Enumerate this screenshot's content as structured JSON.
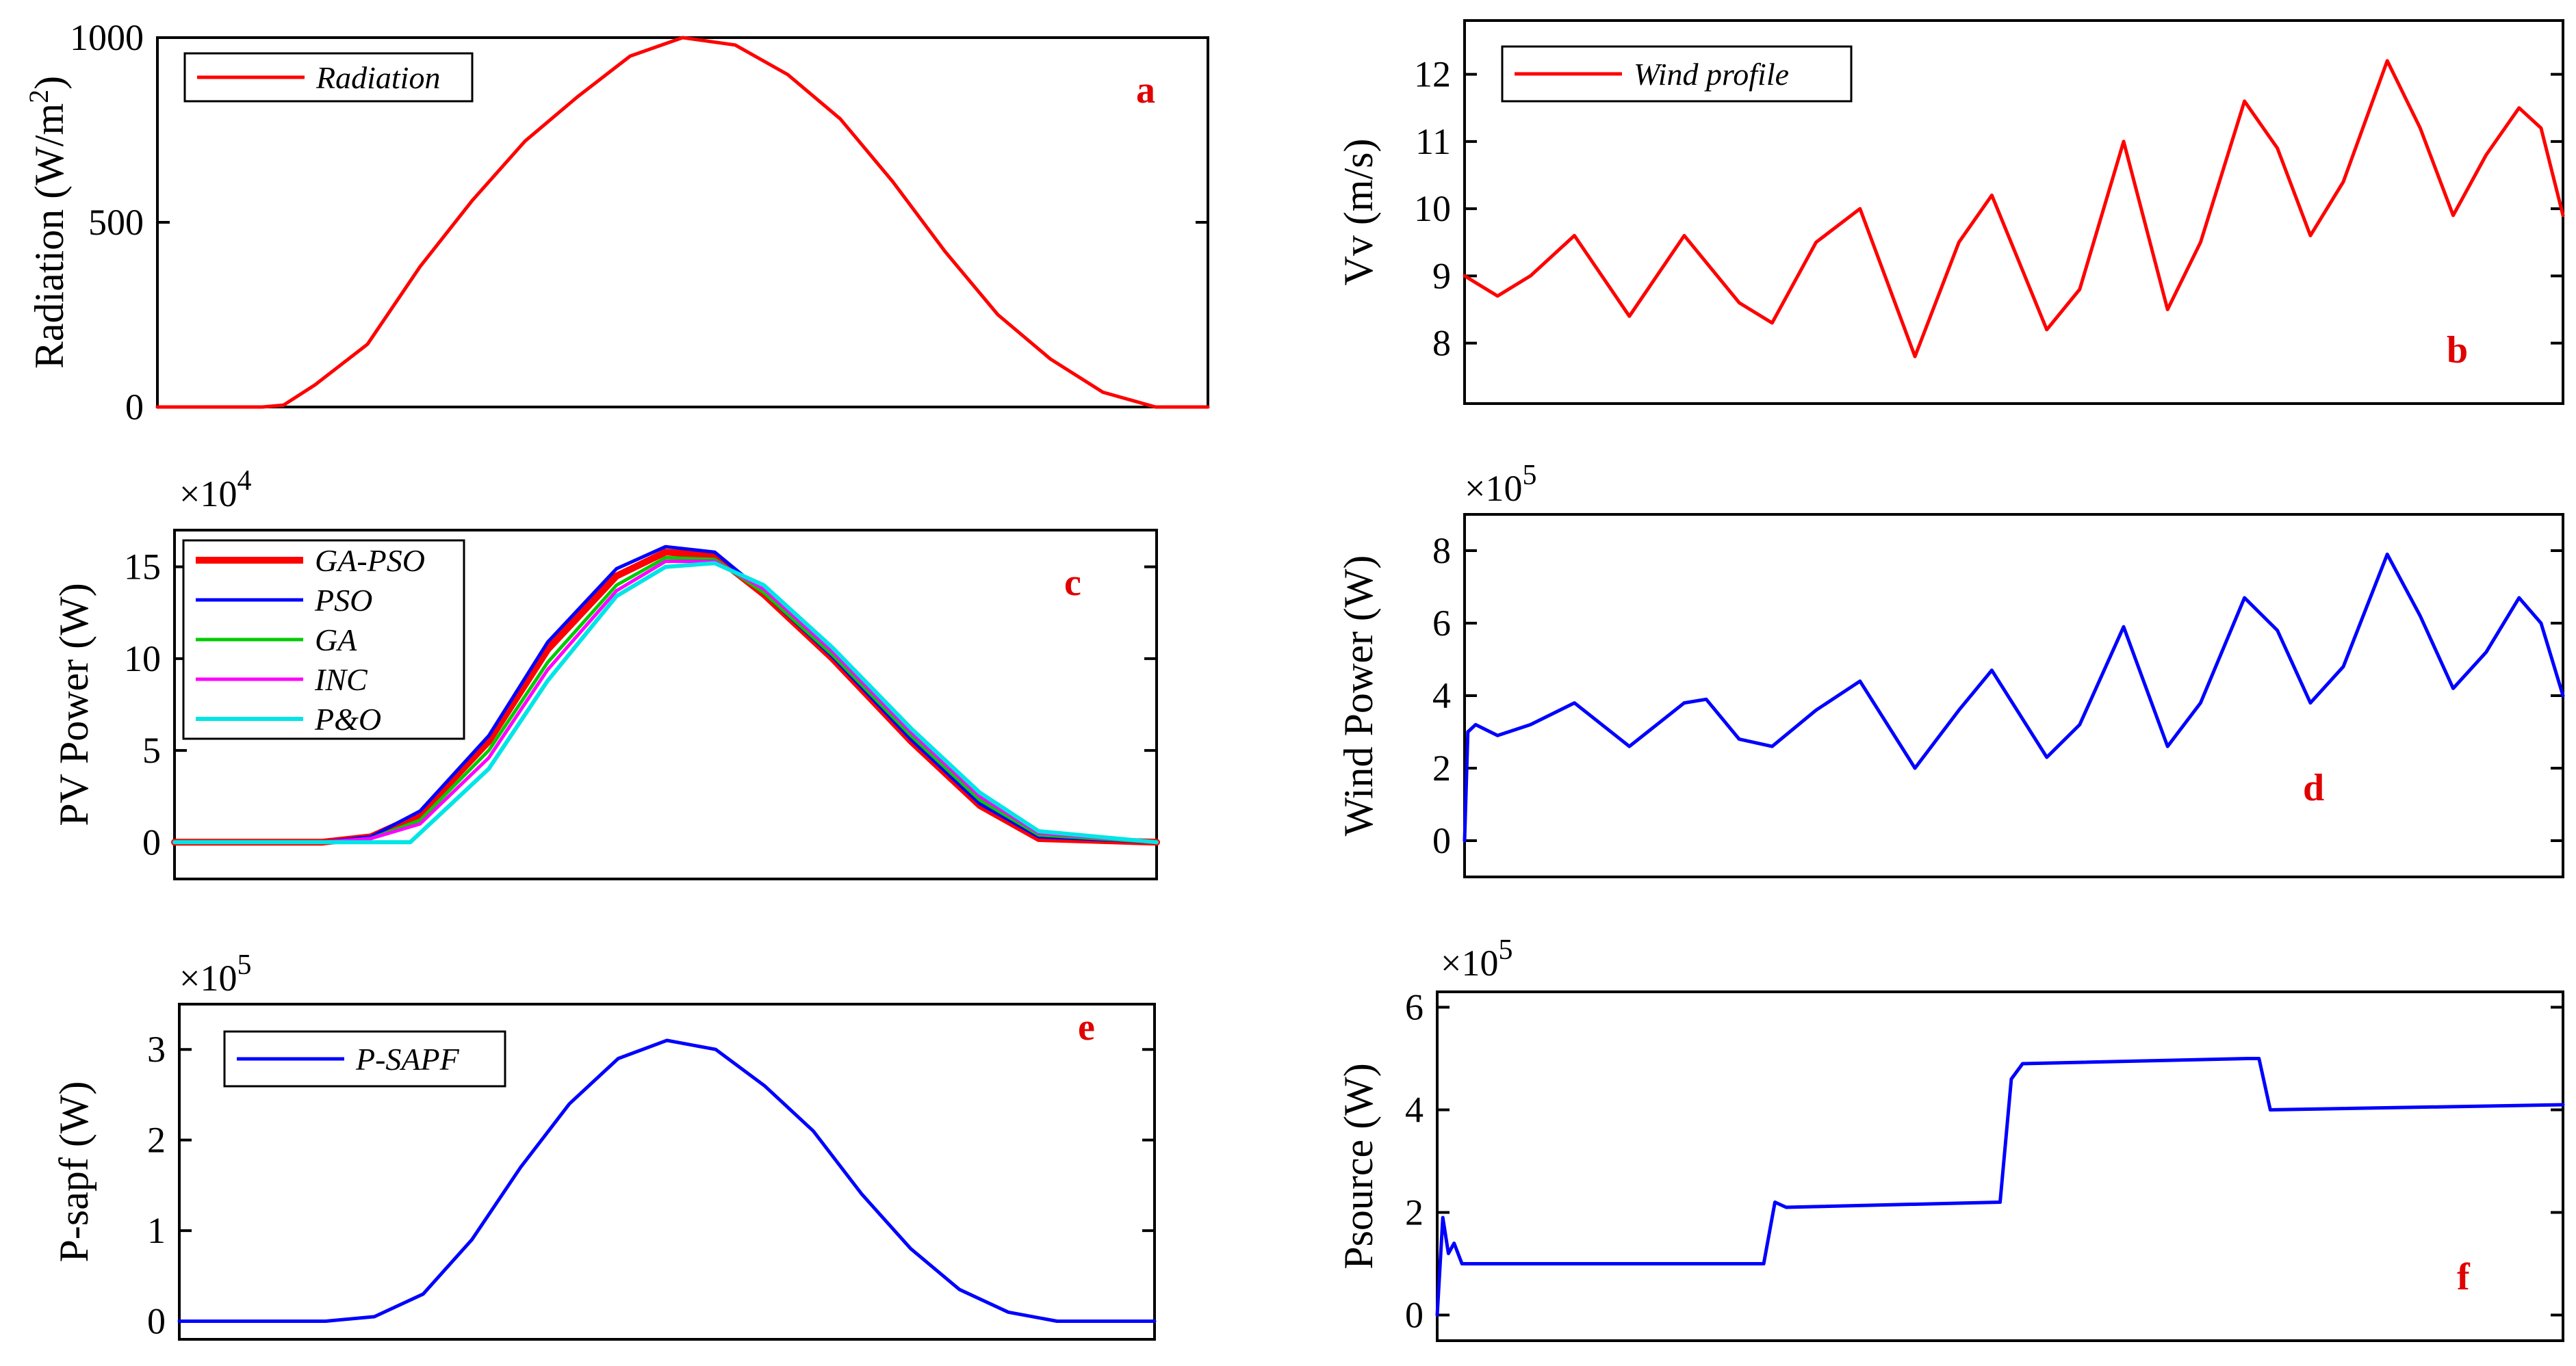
{
  "chart_data": [
    {
      "panel": "a",
      "type": "line",
      "ylabel": "Radiation (W/m",
      "ylabel_sup": "2",
      "ylabel_end": ")",
      "exponent_base": "",
      "exponent_power": "",
      "ylim": [
        0,
        1000
      ],
      "xlim": [
        0,
        1
      ],
      "yticks": [
        0,
        500,
        1000
      ],
      "ytick_labels": [
        "0",
        "500",
        "1000"
      ],
      "panel_letter": "a",
      "legend": [
        "Radiation"
      ],
      "series": [
        {
          "name": "Radiation",
          "color": "#ff0000",
          "width": 5,
          "points": [
            [
              0,
              0
            ],
            [
              0.1,
              0
            ],
            [
              0.12,
              5
            ],
            [
              0.15,
              60
            ],
            [
              0.2,
              170
            ],
            [
              0.25,
              380
            ],
            [
              0.3,
              560
            ],
            [
              0.35,
              720
            ],
            [
              0.4,
              840
            ],
            [
              0.45,
              950
            ],
            [
              0.5,
              1000
            ],
            [
              0.55,
              980
            ],
            [
              0.6,
              900
            ],
            [
              0.65,
              780
            ],
            [
              0.7,
              610
            ],
            [
              0.75,
              420
            ],
            [
              0.8,
              250
            ],
            [
              0.85,
              130
            ],
            [
              0.9,
              40
            ],
            [
              0.95,
              0
            ],
            [
              1,
              0
            ]
          ]
        }
      ]
    },
    {
      "panel": "b",
      "type": "line",
      "ylabel": "Vv (m/s)",
      "ylabel_sup": "",
      "ylabel_end": "",
      "exponent_base": "",
      "exponent_power": "",
      "ylim": [
        7.1,
        12.8
      ],
      "xlim": [
        0,
        1
      ],
      "yticks": [
        8,
        9,
        10,
        11,
        12
      ],
      "ytick_labels": [
        "8",
        "9",
        "10",
        "11",
        "12"
      ],
      "panel_letter": "b",
      "legend": [
        "Wind profile"
      ],
      "series": [
        {
          "name": "Wind profile",
          "color": "#ff0000",
          "width": 5,
          "points": [
            [
              0,
              9.0
            ],
            [
              0.03,
              8.7
            ],
            [
              0.06,
              9.0
            ],
            [
              0.1,
              9.6
            ],
            [
              0.15,
              8.4
            ],
            [
              0.2,
              9.6
            ],
            [
              0.25,
              8.6
            ],
            [
              0.28,
              8.3
            ],
            [
              0.32,
              9.5
            ],
            [
              0.36,
              10.0
            ],
            [
              0.41,
              7.8
            ],
            [
              0.45,
              9.5
            ],
            [
              0.48,
              10.2
            ],
            [
              0.53,
              8.2
            ],
            [
              0.56,
              8.8
            ],
            [
              0.6,
              11.0
            ],
            [
              0.64,
              8.5
            ],
            [
              0.67,
              9.5
            ],
            [
              0.71,
              11.6
            ],
            [
              0.74,
              10.9
            ],
            [
              0.77,
              9.6
            ],
            [
              0.8,
              10.4
            ],
            [
              0.84,
              12.2
            ],
            [
              0.87,
              11.2
            ],
            [
              0.9,
              9.9
            ],
            [
              0.93,
              10.8
            ],
            [
              0.96,
              11.5
            ],
            [
              0.98,
              11.2
            ],
            [
              1,
              9.9
            ]
          ]
        }
      ]
    },
    {
      "panel": "c",
      "type": "line",
      "ylabel": "PV Power (W)",
      "ylabel_sup": "",
      "ylabel_end": "",
      "exponent_base": "×10",
      "exponent_power": "4",
      "ylim": [
        -2,
        17
      ],
      "xlim": [
        0,
        1
      ],
      "yticks": [
        0,
        5,
        10,
        15
      ],
      "ytick_labels": [
        "0",
        "5",
        "10",
        "15"
      ],
      "panel_letter": "c",
      "legend": [
        "GA-PSO",
        "PSO",
        "GA",
        "INC",
        "P&O"
      ],
      "series": [
        {
          "name": "GA-PSO",
          "color": "#ff0000",
          "width": 10,
          "points": [
            [
              0,
              0
            ],
            [
              0.15,
              0
            ],
            [
              0.2,
              0.3
            ],
            [
              0.25,
              1.5
            ],
            [
              0.32,
              5.5
            ],
            [
              0.38,
              10.5
            ],
            [
              0.45,
              14.5
            ],
            [
              0.5,
              15.8
            ],
            [
              0.55,
              15.6
            ],
            [
              0.6,
              13.5
            ],
            [
              0.67,
              10.0
            ],
            [
              0.75,
              5.5
            ],
            [
              0.82,
              2.0
            ],
            [
              0.88,
              0.2
            ],
            [
              1,
              0
            ]
          ]
        },
        {
          "name": "PSO",
          "color": "#0000ff",
          "width": 5,
          "points": [
            [
              0,
              0
            ],
            [
              0.15,
              0
            ],
            [
              0.2,
              0.3
            ],
            [
              0.25,
              1.7
            ],
            [
              0.32,
              5.8
            ],
            [
              0.38,
              10.9
            ],
            [
              0.45,
              14.9
            ],
            [
              0.5,
              16.1
            ],
            [
              0.55,
              15.8
            ],
            [
              0.6,
              13.6
            ],
            [
              0.67,
              10.1
            ],
            [
              0.75,
              5.6
            ],
            [
              0.82,
              2.1
            ],
            [
              0.88,
              0.3
            ],
            [
              1,
              0
            ]
          ]
        },
        {
          "name": "GA",
          "color": "#00cc00",
          "width": 5,
          "points": [
            [
              0,
              0
            ],
            [
              0.15,
              0
            ],
            [
              0.2,
              0.2
            ],
            [
              0.25,
              1.2
            ],
            [
              0.32,
              5.0
            ],
            [
              0.38,
              9.8
            ],
            [
              0.45,
              14.0
            ],
            [
              0.5,
              15.5
            ],
            [
              0.55,
              15.4
            ],
            [
              0.6,
              13.6
            ],
            [
              0.67,
              10.2
            ],
            [
              0.75,
              5.8
            ],
            [
              0.82,
              2.3
            ],
            [
              0.88,
              0.4
            ],
            [
              1,
              0
            ]
          ]
        },
        {
          "name": "INC",
          "color": "#ff00ff",
          "width": 5,
          "points": [
            [
              0,
              0
            ],
            [
              0.15,
              0
            ],
            [
              0.2,
              0.2
            ],
            [
              0.25,
              1.0
            ],
            [
              0.32,
              4.6
            ],
            [
              0.38,
              9.4
            ],
            [
              0.45,
              13.7
            ],
            [
              0.5,
              15.3
            ],
            [
              0.55,
              15.3
            ],
            [
              0.6,
              13.8
            ],
            [
              0.67,
              10.4
            ],
            [
              0.75,
              6.0
            ],
            [
              0.82,
              2.5
            ],
            [
              0.88,
              0.5
            ],
            [
              1,
              0
            ]
          ]
        },
        {
          "name": "P&O",
          "color": "#00e5e5",
          "width": 6,
          "points": [
            [
              0,
              0
            ],
            [
              0.15,
              0
            ],
            [
              0.2,
              0
            ],
            [
              0.24,
              0
            ],
            [
              0.27,
              1.5
            ],
            [
              0.32,
              4.0
            ],
            [
              0.38,
              8.8
            ],
            [
              0.45,
              13.4
            ],
            [
              0.5,
              15.0
            ],
            [
              0.55,
              15.2
            ],
            [
              0.6,
              14.0
            ],
            [
              0.67,
              10.6
            ],
            [
              0.75,
              6.2
            ],
            [
              0.82,
              2.7
            ],
            [
              0.88,
              0.6
            ],
            [
              1,
              0
            ]
          ]
        }
      ]
    },
    {
      "panel": "d",
      "type": "line",
      "ylabel": "Wind Power (W)",
      "ylabel_sup": "",
      "ylabel_end": "",
      "exponent_base": "×10",
      "exponent_power": "5",
      "ylim": [
        -1,
        9
      ],
      "xlim": [
        0,
        1
      ],
      "yticks": [
        0,
        2,
        4,
        6,
        8
      ],
      "ytick_labels": [
        "0",
        "2",
        "4",
        "6",
        "8"
      ],
      "panel_letter": "d",
      "legend": [],
      "series": [
        {
          "name": "Wind Power",
          "color": "#0000ff",
          "width": 5,
          "points": [
            [
              0,
              0
            ],
            [
              0.003,
              3.0
            ],
            [
              0.01,
              3.2
            ],
            [
              0.03,
              2.9
            ],
            [
              0.06,
              3.2
            ],
            [
              0.1,
              3.8
            ],
            [
              0.15,
              2.6
            ],
            [
              0.2,
              3.8
            ],
            [
              0.22,
              3.9
            ],
            [
              0.25,
              2.8
            ],
            [
              0.28,
              2.6
            ],
            [
              0.32,
              3.6
            ],
            [
              0.36,
              4.4
            ],
            [
              0.41,
              2.0
            ],
            [
              0.45,
              3.6
            ],
            [
              0.48,
              4.7
            ],
            [
              0.53,
              2.3
            ],
            [
              0.56,
              3.2
            ],
            [
              0.6,
              5.9
            ],
            [
              0.64,
              2.6
            ],
            [
              0.67,
              3.8
            ],
            [
              0.71,
              6.7
            ],
            [
              0.74,
              5.8
            ],
            [
              0.77,
              3.8
            ],
            [
              0.8,
              4.8
            ],
            [
              0.84,
              7.9
            ],
            [
              0.87,
              6.2
            ],
            [
              0.9,
              4.2
            ],
            [
              0.93,
              5.2
            ],
            [
              0.96,
              6.7
            ],
            [
              0.98,
              6.0
            ],
            [
              1,
              4.0
            ]
          ]
        }
      ]
    },
    {
      "panel": "e",
      "type": "line",
      "ylabel": "P-sapf (W)",
      "ylabel_sup": "",
      "ylabel_end": "",
      "exponent_base": "×10",
      "exponent_power": "5",
      "ylim": [
        -0.2,
        3.5
      ],
      "xlim": [
        0,
        1
      ],
      "yticks": [
        0,
        1,
        2,
        3
      ],
      "ytick_labels": [
        "0",
        "1",
        "2",
        "3"
      ],
      "panel_letter": "e",
      "legend": [
        "P-SAPF"
      ],
      "series": [
        {
          "name": "P-SAPF",
          "color": "#0000ff",
          "width": 5,
          "points": [
            [
              0,
              0
            ],
            [
              0.15,
              0
            ],
            [
              0.2,
              0.05
            ],
            [
              0.25,
              0.3
            ],
            [
              0.3,
              0.9
            ],
            [
              0.35,
              1.7
            ],
            [
              0.4,
              2.4
            ],
            [
              0.45,
              2.9
            ],
            [
              0.5,
              3.1
            ],
            [
              0.55,
              3.0
            ],
            [
              0.6,
              2.6
            ],
            [
              0.65,
              2.1
            ],
            [
              0.7,
              1.4
            ],
            [
              0.75,
              0.8
            ],
            [
              0.8,
              0.35
            ],
            [
              0.85,
              0.1
            ],
            [
              0.9,
              0
            ],
            [
              1,
              0
            ]
          ]
        }
      ]
    },
    {
      "panel": "f",
      "type": "line",
      "ylabel": "Psource (W)",
      "ylabel_sup": "",
      "ylabel_end": "",
      "exponent_base": "×10",
      "exponent_power": "5",
      "ylim": [
        -0.5,
        6.3
      ],
      "xlim": [
        0,
        1
      ],
      "yticks": [
        0,
        2,
        4,
        6
      ],
      "ytick_labels": [
        "0",
        "2",
        "4",
        "6"
      ],
      "panel_letter": "f",
      "legend": [],
      "series": [
        {
          "name": "Psource",
          "color": "#0000ff",
          "width": 5,
          "points": [
            [
              0,
              0
            ],
            [
              0.005,
              1.9
            ],
            [
              0.01,
              1.2
            ],
            [
              0.015,
              1.4
            ],
            [
              0.022,
              1.0
            ],
            [
              0.1,
              1.0
            ],
            [
              0.29,
              1.0
            ],
            [
              0.3,
              2.2
            ],
            [
              0.31,
              2.1
            ],
            [
              0.5,
              2.2
            ],
            [
              0.51,
              4.6
            ],
            [
              0.52,
              4.9
            ],
            [
              0.72,
              5.0
            ],
            [
              0.73,
              5.0
            ],
            [
              0.74,
              4.0
            ],
            [
              1,
              4.1
            ]
          ]
        }
      ]
    }
  ]
}
